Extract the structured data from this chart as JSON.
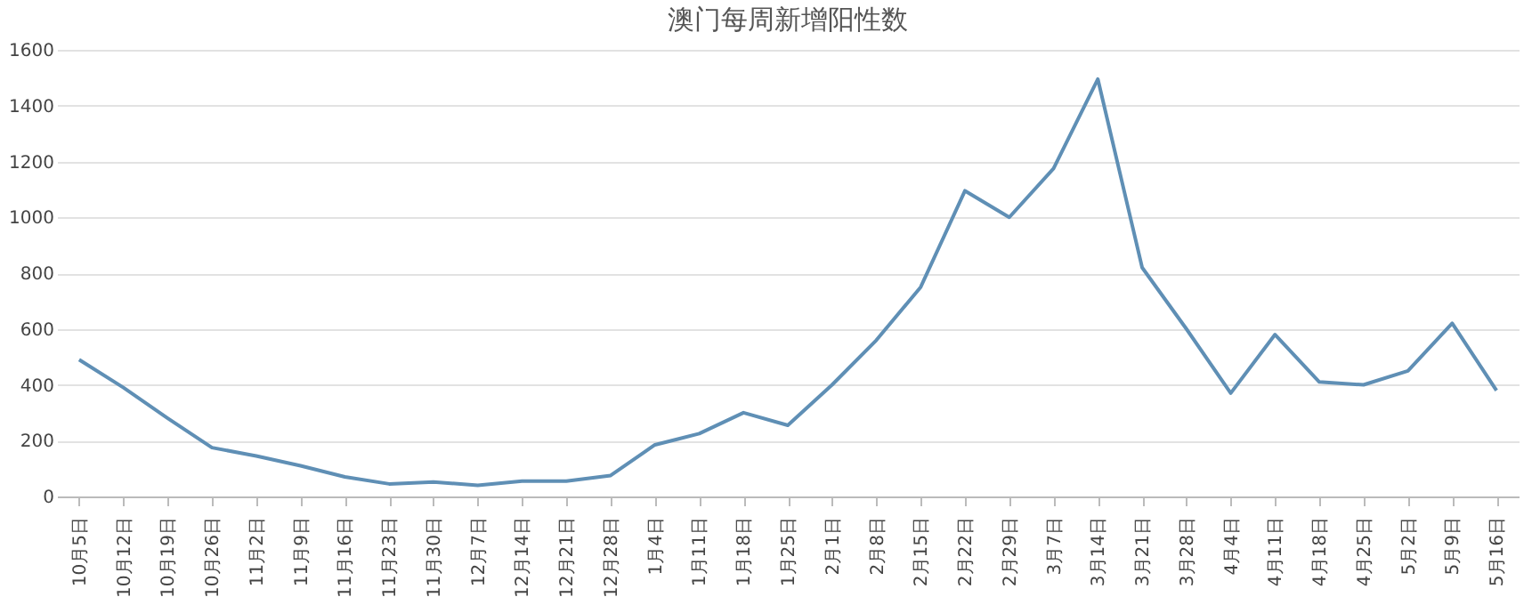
{
  "chart_data": {
    "type": "line",
    "title": "澳门每周新增阳性数",
    "categories": [
      "10月5日",
      "10月12日",
      "10月19日",
      "10月26日",
      "11月2日",
      "11月9日",
      "11月16日",
      "11月23日",
      "11月30日",
      "12月7日",
      "12月14日",
      "12月21日",
      "12月28日",
      "1月4日",
      "1月11日",
      "1月18日",
      "1月25日",
      "2月1日",
      "2月8日",
      "2月15日",
      "2月22日",
      "2月29日",
      "3月7日",
      "3月14日",
      "3月21日",
      "3月28日",
      "4月4日",
      "4月11日",
      "4月18日",
      "4月25日",
      "5月2日",
      "5月9日",
      "5月16日"
    ],
    "series": [
      {
        "color": "#5f8fb5",
        "values": [
          490,
          390,
          280,
          175,
          145,
          110,
          70,
          45,
          52,
          40,
          55,
          55,
          75,
          185,
          225,
          300,
          255,
          400,
          560,
          750,
          1095,
          1000,
          1175,
          1495,
          820,
          600,
          370,
          580,
          410,
          400,
          450,
          620,
          380
        ]
      }
    ],
    "ylim": [
      0,
      1600
    ],
    "yticks": [
      0,
      200,
      400,
      600,
      800,
      1000,
      1200,
      1400,
      1600
    ],
    "grid": "y",
    "marker": "none",
    "line_style": "solid"
  }
}
